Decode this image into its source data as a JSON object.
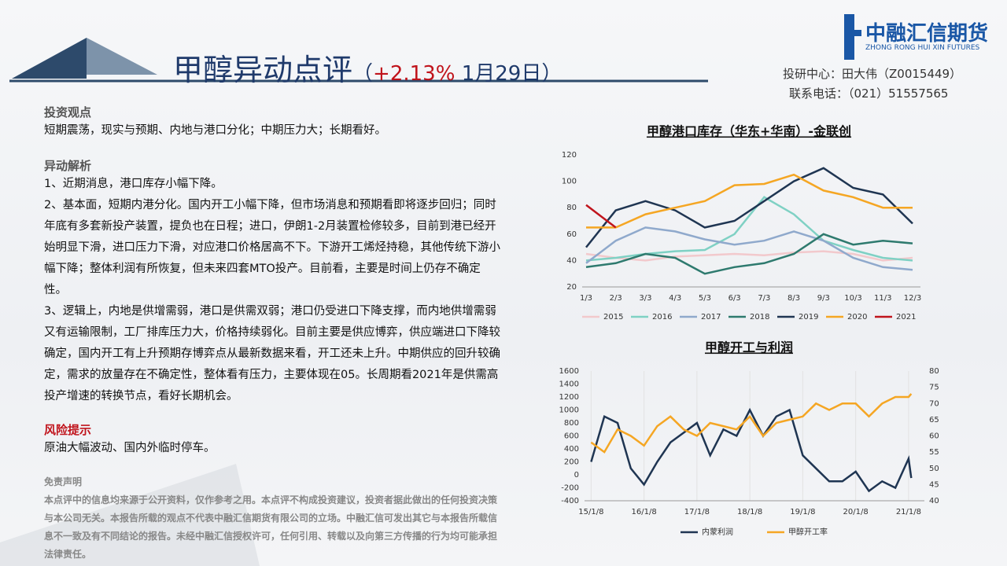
{
  "header": {
    "logo_name": "中融汇信期货",
    "logo_sub": "ZHONG RONG HUI XIN FUTURES",
    "title": "甲醇异动点评",
    "paren_open": "（",
    "change": "+2.13%",
    "date": "1月29日",
    "paren_close": "）",
    "researcher": "投研中心：田大伟（Z0015449）",
    "phone": "联系电话：（021）51557565"
  },
  "sections": [
    {
      "heading": "投资观点",
      "paragraphs": [
        "短期震荡，现实与预期、内地与港口分化；中期压力大；长期看好。"
      ]
    },
    {
      "heading": "异动解析",
      "paragraphs": [
        "1、近期消息，港口库存小幅下降。",
        "2、基本面，短期内港分化。国内开工小幅下降，但市场消息和预期看即将逐步回归；同时年底有多套新投产装置，提负也在日程；进口，伊朗1-2月装置检修较多，目前到港已经开始明显下滑，进口压力下滑，对应港口价格居高不下。下游开工烯烃持稳，其他传统下游小幅下降；整体利润有所恢复，但未来四套MTO投产。目前看，主要是时间上仍存不确定性。",
        "3、逻辑上，内地是供增需弱，港口是供需双弱；港口仍受进口下降支撑，而内地供增需弱又有运输限制，工厂排库压力大，价格持续弱化。目前主要是供应博弈，供应端进口下降较确定，国内开工有上升预期存博弈点从最新数据来看，开工还未上升。中期供应的回升较确定，需求的放量存在不确定性，整体看有压力，主要体现在05。长周期看2021年是供需高投产增速的转换节点，看好长期机会。"
      ]
    },
    {
      "heading": "风险提示",
      "paragraphs": [
        "原油大幅波动、国内外临时停车。"
      ]
    }
  ],
  "disclaimer": {
    "heading": "免责声明",
    "text": "本点评中的信息均来源于公开资料，仅作参考之用。本点评不构成投资建议，投资者据此做出的任何投资决策与本公司无关。本报告所载的观点不代表中融汇信期货有限公司的立场。中融汇信可发出其它与本报告所载信息不一致及有不同结论的报告。未经中融汇信授权许可，任何引用、转载以及向第三方传播的行为均可能承担法律责任。"
  },
  "chart_data": [
    {
      "type": "line",
      "title": "甲醇港口库存（华东+华南）-金联创",
      "categories": [
        "1/3",
        "2/3",
        "3/3",
        "4/3",
        "5/3",
        "6/3",
        "7/3",
        "8/3",
        "9/3",
        "10/3",
        "11/3",
        "12/3"
      ],
      "ylim": [
        20,
        120
      ],
      "yticks": [
        20,
        40,
        60,
        80,
        100,
        120
      ],
      "series": [
        {
          "name": "2015",
          "color": "#f2c9cc",
          "values": [
            45,
            42,
            40,
            43,
            44,
            45,
            44,
            46,
            47,
            45,
            40,
            42
          ]
        },
        {
          "name": "2016",
          "color": "#7fd1c4",
          "values": [
            40,
            42,
            45,
            47,
            48,
            60,
            88,
            75,
            55,
            48,
            42,
            40
          ]
        },
        {
          "name": "2017",
          "color": "#8fa9cc",
          "values": [
            38,
            55,
            65,
            62,
            56,
            52,
            55,
            62,
            55,
            42,
            35,
            33
          ]
        },
        {
          "name": "2018",
          "color": "#2e7a6e",
          "values": [
            35,
            38,
            45,
            42,
            30,
            35,
            38,
            45,
            60,
            52,
            55,
            53
          ]
        },
        {
          "name": "2019",
          "color": "#1f3552",
          "values": [
            50,
            78,
            85,
            78,
            65,
            70,
            85,
            100,
            110,
            95,
            90,
            68
          ]
        },
        {
          "name": "2020",
          "color": "#f5a623",
          "values": [
            65,
            65,
            75,
            80,
            85,
            97,
            98,
            105,
            93,
            88,
            80,
            80
          ]
        },
        {
          "name": "2021",
          "color": "#c0141c",
          "values": [
            82,
            65,
            null,
            null,
            null,
            null,
            null,
            null,
            null,
            null,
            null,
            null
          ]
        }
      ]
    },
    {
      "type": "line",
      "title": "甲醇开工与利润",
      "x": [
        2015,
        2015.25,
        2015.5,
        2015.75,
        2016,
        2016.25,
        2016.5,
        2016.75,
        2017,
        2017.25,
        2017.5,
        2017.75,
        2018,
        2018.25,
        2018.5,
        2018.75,
        2019,
        2019.25,
        2019.5,
        2019.75,
        2020,
        2020.25,
        2020.5,
        2020.75,
        2021,
        2021.05
      ],
      "xlim": [
        2014.95,
        2021.15
      ],
      "xticks": [
        {
          "value": 2015,
          "label": "15/1/8"
        },
        {
          "value": 2016,
          "label": "16/1/8"
        },
        {
          "value": 2017,
          "label": "17/1/8"
        },
        {
          "value": 2018,
          "label": "18/1/8"
        },
        {
          "value": 2019,
          "label": "19/1/8"
        },
        {
          "value": 2020,
          "label": "20/1/8"
        },
        {
          "value": 2021,
          "label": "21/1/8"
        }
      ],
      "ylim": [
        -400,
        1600
      ],
      "yticks": [
        -400,
        -200,
        0,
        200,
        400,
        600,
        800,
        1000,
        1200,
        1400,
        1600
      ],
      "y2lim": [
        40,
        80
      ],
      "y2ticks": [
        40,
        45,
        50,
        55,
        60,
        65,
        70,
        75,
        80
      ],
      "series": [
        {
          "name": "内蒙利润",
          "color": "#1f3552",
          "values": [
            200,
            900,
            800,
            100,
            -150,
            200,
            500,
            650,
            800,
            300,
            700,
            600,
            1000,
            600,
            900,
            1000,
            300,
            100,
            -100,
            -100,
            50,
            -250,
            -100,
            -200,
            250,
            -50
          ]
        },
        {
          "name": "甲醇开工率",
          "color": "#f5a623",
          "axis": "y2",
          "values": [
            58,
            55,
            62,
            60,
            57,
            63,
            66,
            62,
            60,
            64,
            63,
            62,
            66,
            60,
            64,
            65,
            66,
            70,
            68,
            70,
            70,
            66,
            70,
            72,
            72,
            73
          ]
        }
      ]
    }
  ]
}
